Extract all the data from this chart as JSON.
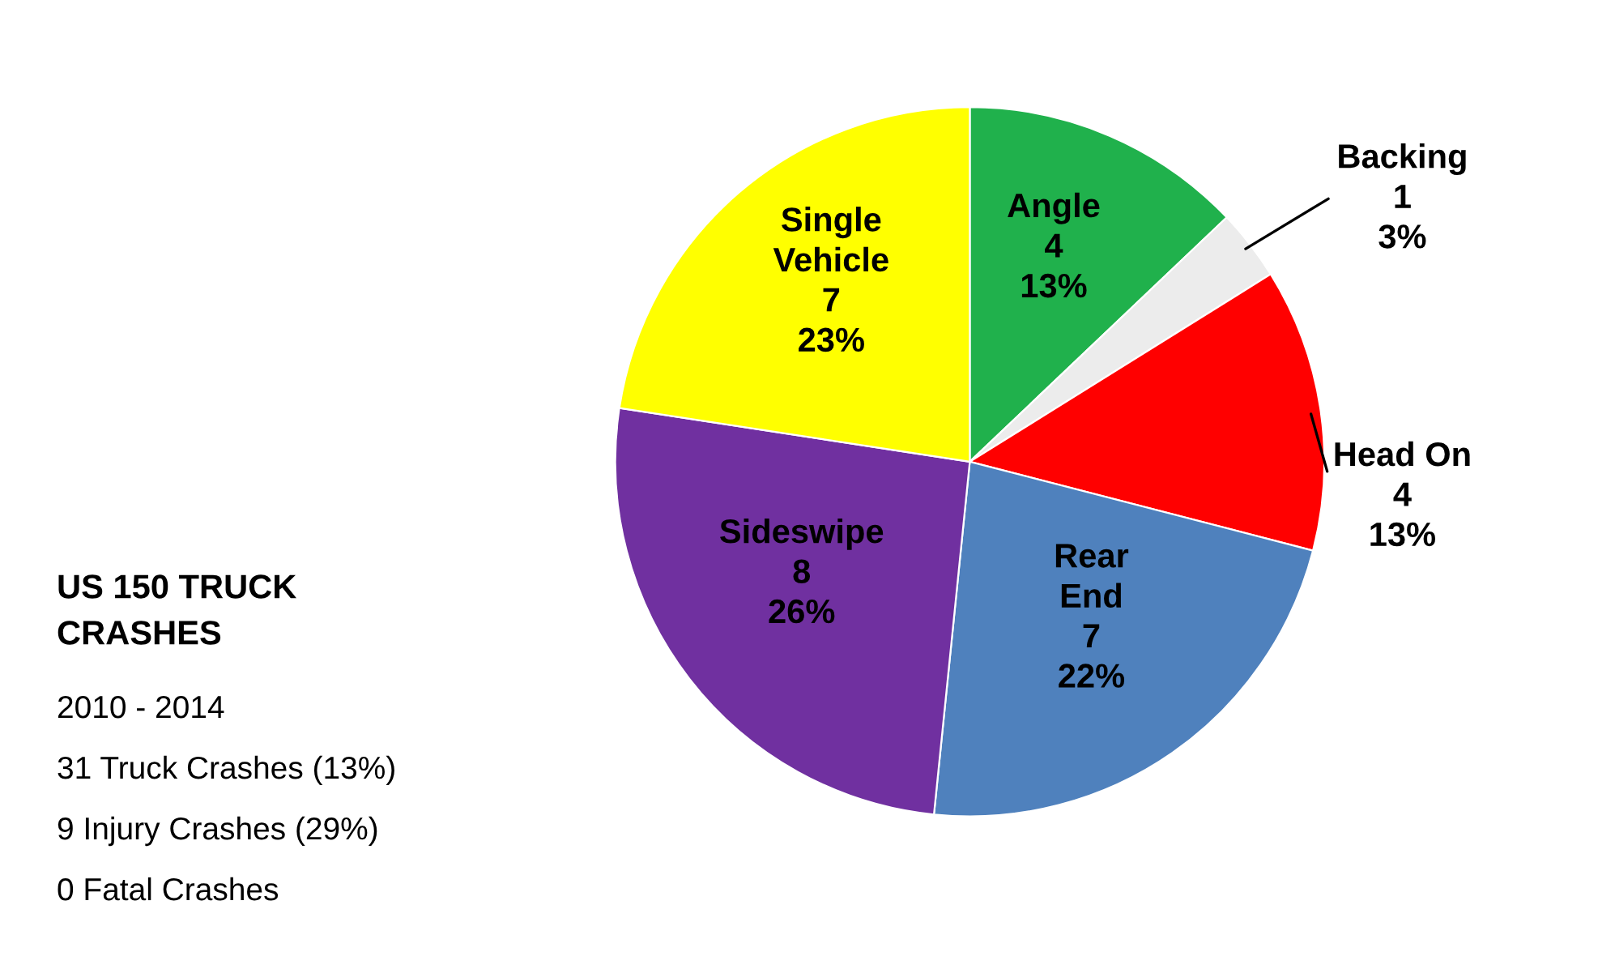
{
  "chart_data": {
    "type": "pie",
    "title": "US 150 TRUCK CRASHES",
    "annotations": [
      "2010 - 2014",
      "31 Truck Crashes (13%)",
      "9 Injury Crashes (29%)",
      "0 Fatal Crashes"
    ],
    "categories": [
      "Angle",
      "Backing",
      "Head On",
      "Rear End",
      "Sideswipe",
      "Single Vehicle"
    ],
    "values": [
      4,
      1,
      4,
      7,
      8,
      7
    ],
    "value_labels": [
      "4\n13%",
      "1\n3%",
      "4\n13%",
      "7\n22%",
      "8\n26%",
      "7\n23%"
    ],
    "colors": [
      "#20b14c",
      "#ececec",
      "#ff0000",
      "#4f81bd",
      "#7030a0",
      "#ffff00"
    ],
    "legend": false
  }
}
